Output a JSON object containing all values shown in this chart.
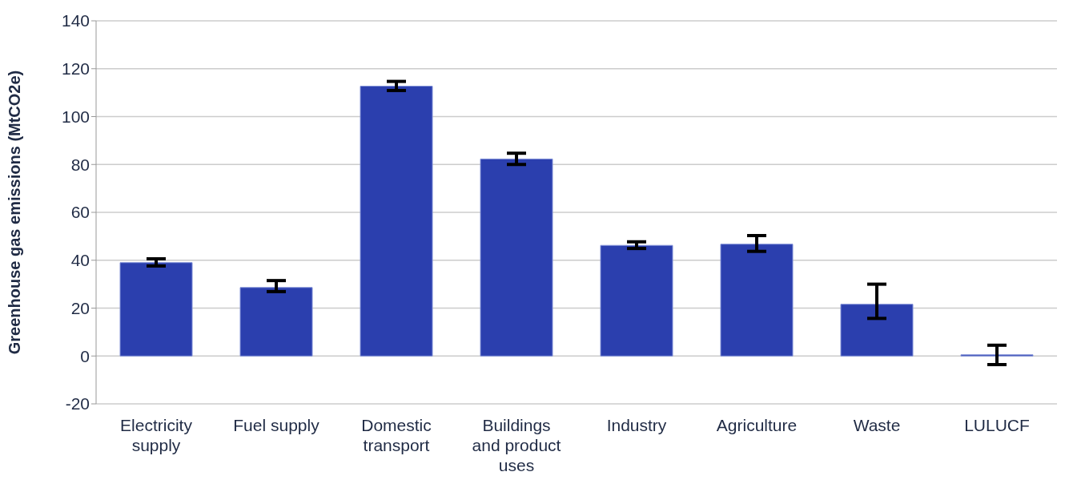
{
  "chart_data": {
    "type": "bar",
    "ylabel": "Greenhouse gas emissions (MtCO2e)",
    "categories": [
      "Electricity supply",
      "Fuel supply",
      "Domestic transport",
      "Buildings and product uses",
      "Industry",
      "Agriculture",
      "Waste",
      "LULUCF"
    ],
    "values": [
      39,
      28.6,
      112.7,
      82.3,
      46.2,
      46.7,
      21.6,
      0.5
    ],
    "errors": [
      [
        37.6,
        40.6
      ],
      [
        26.9,
        31.5
      ],
      [
        110.9,
        114.7
      ],
      [
        80,
        84.7
      ],
      [
        44.9,
        47.7
      ],
      [
        43.7,
        50.3
      ],
      [
        15.7,
        30
      ],
      [
        -3.6,
        4.5
      ]
    ],
    "color": "#2b3fae",
    "ylim": [
      -20,
      140
    ],
    "yticks": [
      -20,
      0,
      20,
      40,
      60,
      80,
      100,
      120,
      140
    ],
    "grid": "y"
  }
}
